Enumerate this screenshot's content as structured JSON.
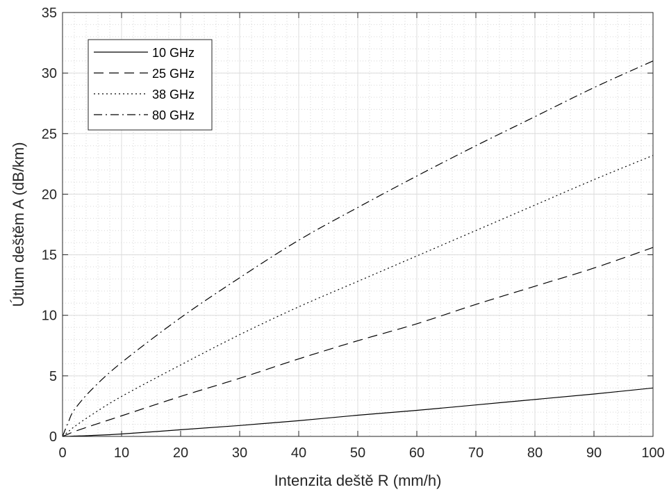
{
  "chart_data": {
    "type": "line",
    "xlabel": "Intenzita deště R (mm/h)",
    "ylabel": "Útlum deštěm A (dB/km)",
    "xlim": [
      0,
      100
    ],
    "ylim": [
      0,
      35
    ],
    "x_ticks": [
      0,
      10,
      20,
      30,
      40,
      50,
      60,
      70,
      80,
      90,
      100
    ],
    "y_ticks": [
      0,
      5,
      10,
      15,
      20,
      25,
      30,
      35
    ],
    "grid": true,
    "minor_grid": true,
    "legend_position": "top-left",
    "x": [
      0,
      1,
      2,
      5,
      10,
      20,
      30,
      40,
      50,
      60,
      70,
      80,
      90,
      100
    ],
    "series": [
      {
        "name": "10 GHz",
        "line_style": "solid",
        "color": "#000000",
        "values": [
          0,
          0.01,
          0.03,
          0.08,
          0.2,
          0.55,
          0.9,
          1.3,
          1.75,
          2.15,
          2.6,
          3.05,
          3.5,
          4.0
        ]
      },
      {
        "name": "25 GHz",
        "line_style": "dashed",
        "color": "#000000",
        "values": [
          0,
          0.2,
          0.4,
          0.9,
          1.7,
          3.3,
          4.8,
          6.4,
          7.9,
          9.3,
          10.9,
          12.4,
          13.9,
          15.6
        ]
      },
      {
        "name": "38 GHz",
        "line_style": "dotted",
        "color": "#000000",
        "values": [
          0,
          0.4,
          0.8,
          1.8,
          3.3,
          5.9,
          8.4,
          10.7,
          12.8,
          14.9,
          17.0,
          19.1,
          21.2,
          23.2
        ]
      },
      {
        "name": "80 GHz",
        "line_style": "dashdot",
        "color": "#000000",
        "values": [
          0,
          1.2,
          2.2,
          3.9,
          6.1,
          9.8,
          13.1,
          16.2,
          18.9,
          21.5,
          24.0,
          26.4,
          28.8,
          31.0
        ]
      }
    ]
  }
}
